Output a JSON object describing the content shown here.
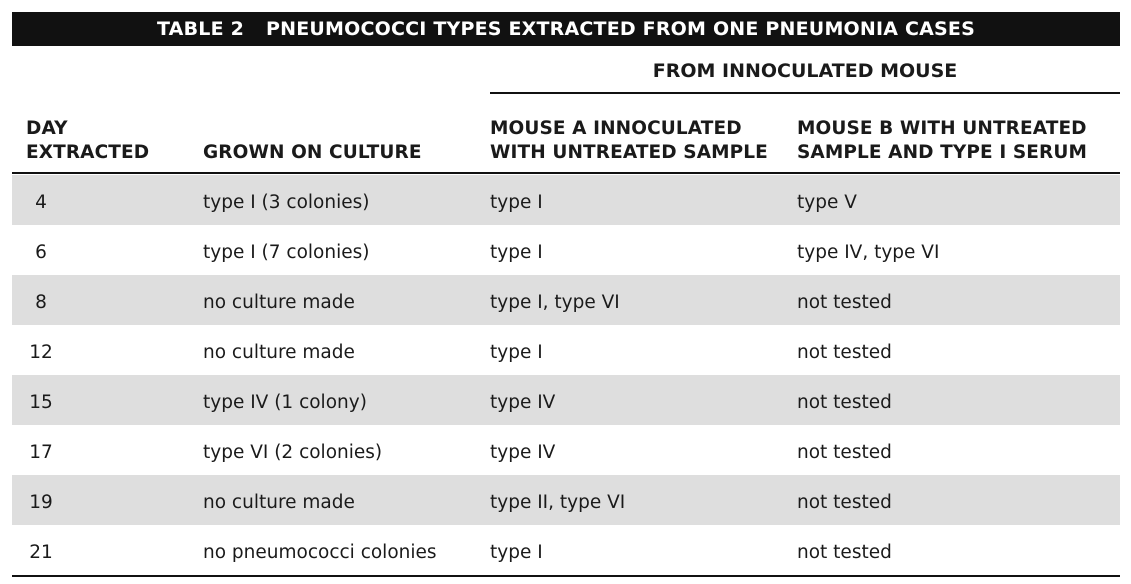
{
  "title": {
    "label": "TABLE 2",
    "text": "PNEUMOCOCCI TYPES EXTRACTED FROM ONE PNEUMONIA CASES"
  },
  "spanner_header": "FROM INNOCULATED MOUSE",
  "columns": {
    "day": [
      "DAY",
      "EXTRACTED"
    ],
    "grown": "GROWN ON CULTURE",
    "mouse_a": [
      "MOUSE A INNOCULATED",
      "WITH UNTREATED SAMPLE"
    ],
    "mouse_b": [
      "MOUSE B WITH UNTREATED",
      "SAMPLE AND TYPE I SERUM"
    ]
  },
  "rows": [
    {
      "day": "4",
      "grown": "type I (3 colonies)",
      "mouse_a": "type I",
      "mouse_b": "type V"
    },
    {
      "day": "6",
      "grown": "type I (7 colonies)",
      "mouse_a": "type I",
      "mouse_b": "type IV, type VI"
    },
    {
      "day": "8",
      "grown": "no culture made",
      "mouse_a": "type I, type VI",
      "mouse_b": "not tested"
    },
    {
      "day": "12",
      "grown": "no culture made",
      "mouse_a": "type I",
      "mouse_b": "not tested"
    },
    {
      "day": "15",
      "grown": "type IV (1 colony)",
      "mouse_a": "type IV",
      "mouse_b": "not tested"
    },
    {
      "day": "17",
      "grown": "type VI (2 colonies)",
      "mouse_a": "type IV",
      "mouse_b": "not tested"
    },
    {
      "day": "19",
      "grown": "no culture made",
      "mouse_a": "type II, type VI",
      "mouse_b": "not tested"
    },
    {
      "day": "21",
      "grown": "no pneumococci colonies",
      "mouse_a": "type I",
      "mouse_b": "not tested"
    }
  ],
  "colors": {
    "title_background": "#111111",
    "title_text": "#ffffff",
    "shaded_row": "#dedede",
    "text": "#1a1a1a"
  }
}
